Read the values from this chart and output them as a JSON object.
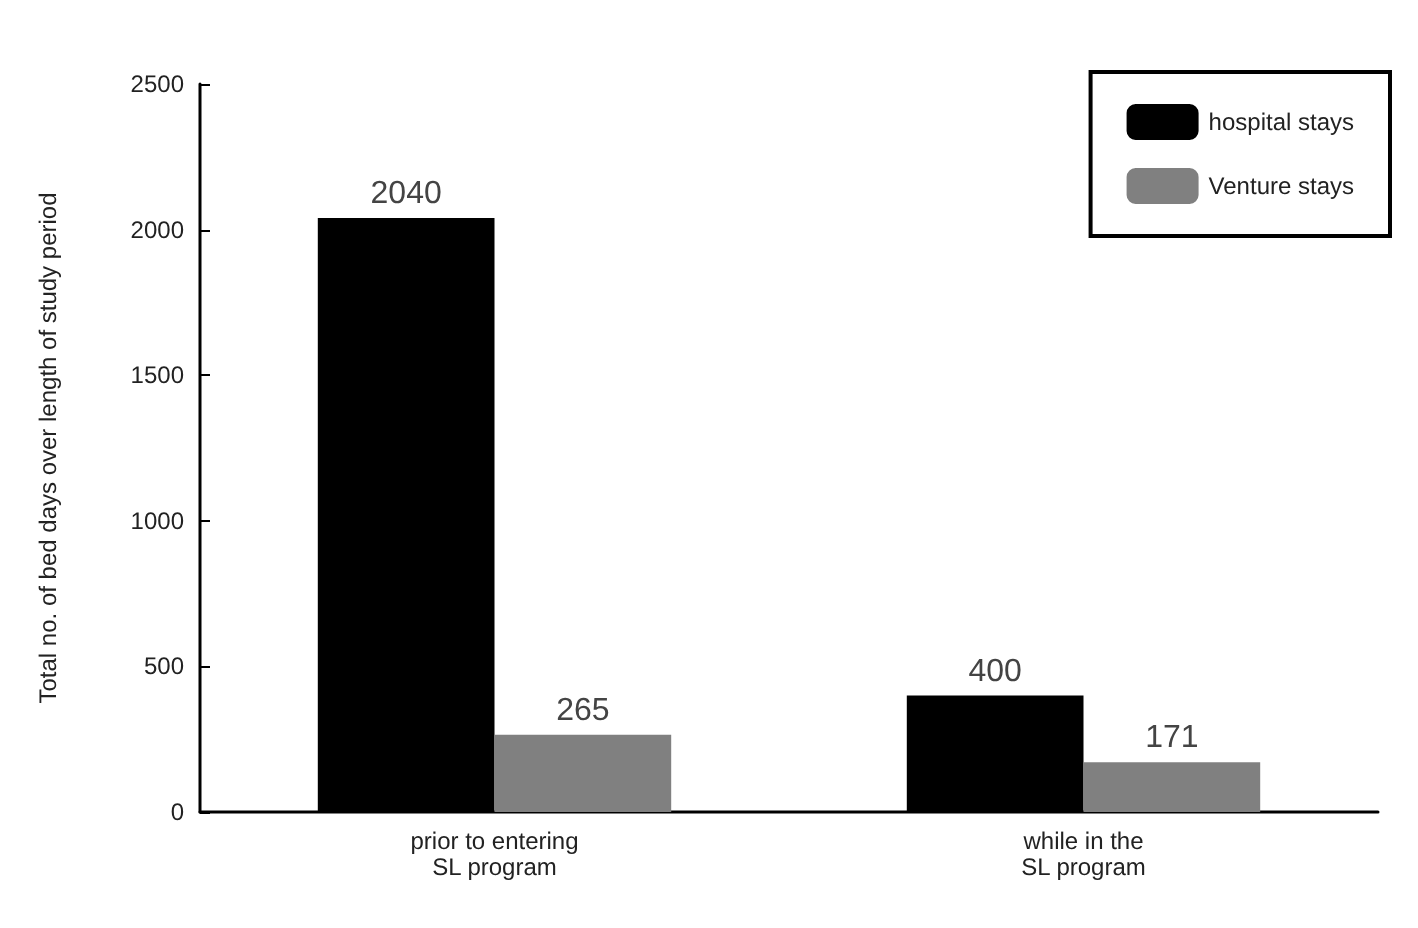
{
  "chart_data": {
    "type": "bar",
    "ylabel": "Total no. of bed days over length of study period",
    "categories": [
      "prior to entering\nSL program",
      "while in the\nSL program"
    ],
    "series": [
      {
        "name": "hospital stays",
        "color": "#000000",
        "values": [
          2040,
          400
        ]
      },
      {
        "name": "Venture stays",
        "color": "#808080",
        "values": [
          265,
          171
        ]
      }
    ],
    "ylim": [
      0,
      2500
    ],
    "yticks": [
      0,
      500,
      1000,
      1500,
      2000,
      2500
    ],
    "grid": false,
    "legend": "top right",
    "data_labels": true
  }
}
